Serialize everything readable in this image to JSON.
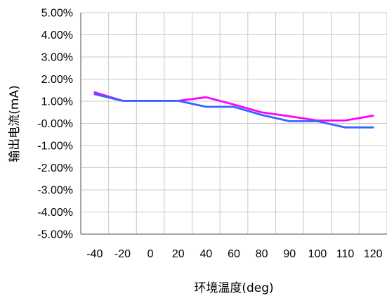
{
  "chart_data": {
    "type": "line",
    "categories": [
      "-40",
      "-20",
      "0",
      "20",
      "40",
      "60",
      "80",
      "90",
      "100",
      "110",
      "120"
    ],
    "series": [
      {
        "color": "#ff00ff",
        "values": [
          1.4,
          1.02,
          1.02,
          1.02,
          1.18,
          0.85,
          0.5,
          0.32,
          0.13,
          0.13,
          0.35
        ]
      },
      {
        "color": "#3366ff",
        "values": [
          1.32,
          1.02,
          1.02,
          1.02,
          0.75,
          0.75,
          0.38,
          0.1,
          0.1,
          -0.18,
          -0.18
        ]
      }
    ],
    "y_ticks": [
      "5.00%",
      "4.00%",
      "3.00%",
      "2.00%",
      "1.00%",
      "-0.00%",
      "-1.00%",
      "-2.00%",
      "-3.00%",
      "-4.00%",
      "-5.00%"
    ],
    "ylim": [
      -5,
      5
    ],
    "xlabel": "环境温度(deg)",
    "ylabel": "输出电流(mA)",
    "grid": true,
    "legend": false
  }
}
